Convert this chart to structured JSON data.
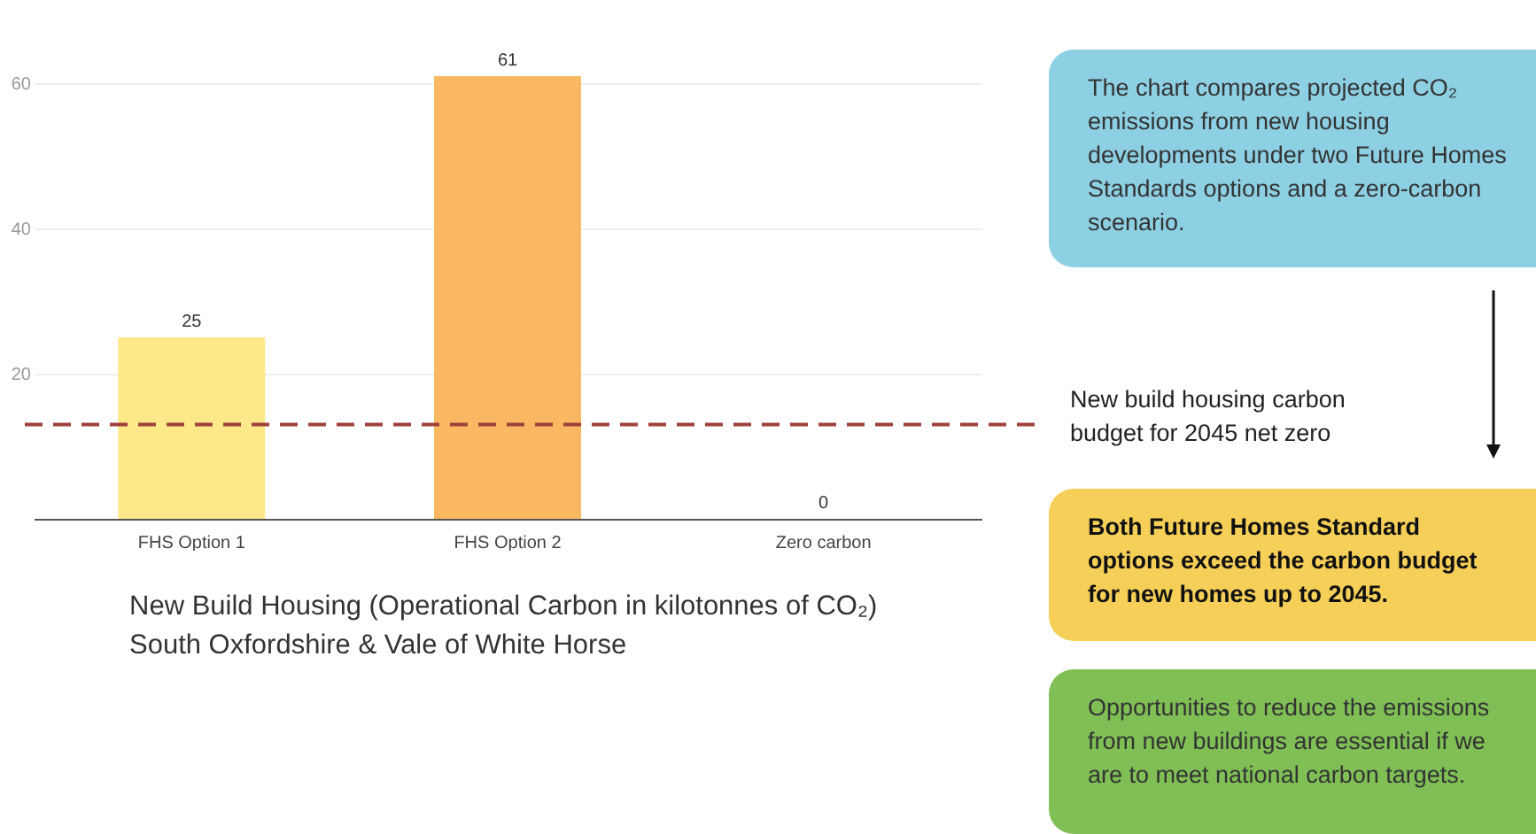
{
  "chart_data": {
    "type": "bar",
    "title": "New Build Housing (Operational Carbon in kilotonnes of CO₂)",
    "subtitle": "South Oxfordshire & Vale of White Horse",
    "categories": [
      "FHS Option 1",
      "FHS Option 2",
      "Zero carbon"
    ],
    "values": [
      25,
      61,
      0
    ],
    "colors": [
      "#fde98a",
      "#fbb862",
      "#fbb862"
    ],
    "ylim": [
      0,
      61
    ],
    "yticks": [
      20,
      40,
      60
    ],
    "grid": "y",
    "data_labels": true,
    "ref_lines": [
      {
        "axis": "y",
        "value": 13,
        "label": "New build housing carbon budget for 2045 net zero",
        "color": "#a0403a",
        "line_style": "dashed"
      }
    ],
    "annotations": [
      "The chart compares projected CO₂ emissions from new housing developments under two Future Homes Standards options and a zero-carbon scenario.",
      "Both Future Homes Standard options exceed the carbon budget for new homes up to 2045.",
      "Opportunities to reduce the emissions from new buildings are essential if we are to meet national carbon targets."
    ]
  }
}
